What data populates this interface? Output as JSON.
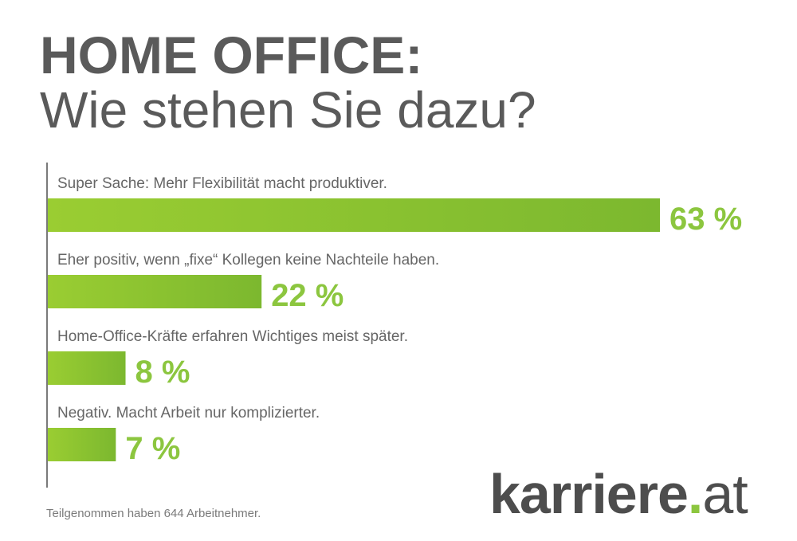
{
  "header": {
    "title": "HOME OFFICE:",
    "subtitle": "Wie stehen Sie dazu?"
  },
  "chart_data": {
    "type": "bar",
    "orientation": "horizontal",
    "categories": [
      "Super Sache: Mehr Flexibilität macht produktiver.",
      "Eher positiv, wenn „fixe“ Kollegen keine Nachteile haben.",
      "Home-Office-Kräfte erfahren Wichtiges meist später.",
      "Negativ. Macht Arbeit nur komplizierter."
    ],
    "values": [
      63,
      22,
      8,
      7
    ],
    "value_labels": [
      "63 %",
      "22 %",
      "8 %",
      "7 %"
    ],
    "unit": "%",
    "xlim": [
      0,
      63
    ],
    "grid": false,
    "bar_gradient": [
      "#9acd32",
      "#7cb82f"
    ],
    "label_color": "#8cc63f"
  },
  "footer": {
    "note": "Teilgenommen haben 644 Arbeitnehmer."
  },
  "logo": {
    "name": "karriere",
    "dot": ".",
    "tld": "at"
  }
}
